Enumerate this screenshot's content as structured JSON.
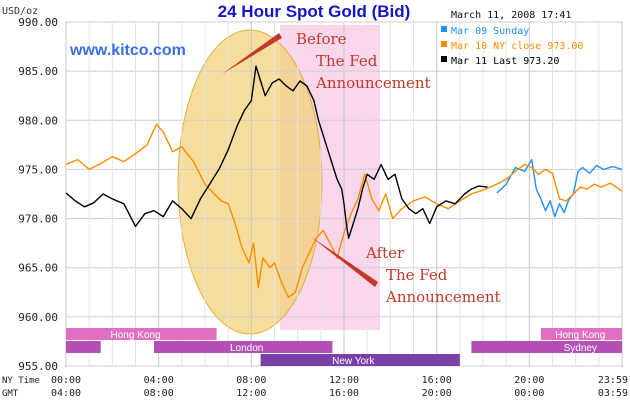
{
  "header": {
    "title": "24 Hour Spot Gold (Bid)",
    "timestamp": "March 11, 2008 17:41",
    "unit": "USD/oz",
    "website": "www.kitco.com"
  },
  "legend": [
    {
      "label": "Mar 09 Sunday",
      "color": "#1e90ff"
    },
    {
      "label": "Mar 10 NY close 973.00",
      "color": "#ff8c00"
    },
    {
      "label": "Mar 11 Last 973.20",
      "color": "#000000"
    }
  ],
  "annotations": {
    "before": [
      "Before",
      "The Fed",
      "Announcement"
    ],
    "after": [
      "After",
      "The Fed",
      "Announcement"
    ],
    "color": "#c0392b"
  },
  "axis_rows": {
    "ny_label": "NY Time",
    "gmt_label": "GMT"
  },
  "sessions": [
    {
      "name": "Hong Kong",
      "start": 0,
      "end": 6.5,
      "row": 0,
      "color": "#e06fc4",
      "label_at": 3.0
    },
    {
      "name": "Hong Kong",
      "start": 20.5,
      "end": 24,
      "row": 0,
      "color": "#e06fc4",
      "label_at": 22.2
    },
    {
      "name": "London",
      "start": 0,
      "end": 1.5,
      "row": 1,
      "color": "#b44fb4",
      "label_at": null
    },
    {
      "name": "London",
      "start": 3.8,
      "end": 11.5,
      "row": 1,
      "color": "#b44fb4",
      "label_at": 7.8
    },
    {
      "name": "Sydney",
      "start": 17.5,
      "end": 24,
      "row": 1,
      "color": "#b44fb4",
      "label_at": 22.2
    },
    {
      "name": "New York",
      "start": 8.4,
      "end": 17.0,
      "row": 2,
      "color": "#7a3fa8",
      "label_at": 12.4
    }
  ],
  "chart_data": {
    "type": "line",
    "title": "24 Hour Spot Gold (Bid)",
    "ylabel": "USD/oz",
    "xlabel": "",
    "xlim": [
      0,
      24
    ],
    "ylim": [
      955,
      990
    ],
    "grid": true,
    "legend_position": "top-right",
    "yticks": [
      "955.00",
      "960.00",
      "965.00",
      "970.00",
      "975.00",
      "980.00",
      "985.00",
      "990.00"
    ],
    "x_ticks_ny": [
      "00:00",
      "04:00",
      "08:00",
      "12:00",
      "16:00",
      "20:00",
      "23:59"
    ],
    "x_ticks_gmt": [
      "04:00",
      "08:00",
      "12:00",
      "16:00",
      "20:00",
      "00:00",
      "03:59"
    ],
    "series": [
      {
        "name": "Mar 09 Sunday",
        "color": "#1e90ff",
        "points": [
          [
            18.6,
            972.6
          ],
          [
            19.0,
            973.5
          ],
          [
            19.4,
            975.2
          ],
          [
            19.8,
            974.8
          ],
          [
            20.1,
            976.0
          ],
          [
            20.3,
            973.0
          ],
          [
            20.5,
            972.0
          ],
          [
            20.7,
            970.8
          ],
          [
            20.9,
            971.8
          ],
          [
            21.1,
            970.2
          ],
          [
            21.3,
            971.5
          ],
          [
            21.5,
            970.6
          ],
          [
            21.7,
            971.9
          ],
          [
            21.9,
            972.5
          ],
          [
            22.1,
            974.8
          ],
          [
            22.3,
            975.2
          ],
          [
            22.6,
            974.6
          ],
          [
            22.9,
            975.4
          ],
          [
            23.2,
            975.0
          ],
          [
            23.6,
            975.3
          ],
          [
            24.0,
            975.0
          ]
        ]
      },
      {
        "name": "Mar 10 NY close 973.00",
        "color": "#ff8c00",
        "points": [
          [
            0.0,
            975.5
          ],
          [
            0.5,
            976.0
          ],
          [
            1.0,
            975.0
          ],
          [
            1.5,
            975.6
          ],
          [
            2.0,
            976.3
          ],
          [
            2.5,
            975.8
          ],
          [
            3.0,
            976.6
          ],
          [
            3.5,
            977.5
          ],
          [
            3.9,
            979.6
          ],
          [
            4.2,
            978.8
          ],
          [
            4.6,
            976.8
          ],
          [
            5.0,
            977.3
          ],
          [
            5.5,
            975.8
          ],
          [
            6.0,
            973.5
          ],
          [
            6.4,
            972.5
          ],
          [
            6.7,
            971.8
          ],
          [
            7.0,
            971.5
          ],
          [
            7.3,
            969.5
          ],
          [
            7.6,
            967.0
          ],
          [
            7.9,
            965.5
          ],
          [
            8.1,
            967.5
          ],
          [
            8.3,
            963.0
          ],
          [
            8.5,
            966.0
          ],
          [
            8.8,
            965.0
          ],
          [
            9.0,
            965.5
          ],
          [
            9.3,
            963.5
          ],
          [
            9.6,
            962.0
          ],
          [
            9.9,
            962.5
          ],
          [
            10.2,
            965.0
          ],
          [
            10.5,
            966.5
          ],
          [
            10.8,
            968.0
          ],
          [
            11.1,
            968.8
          ],
          [
            11.4,
            967.5
          ],
          [
            11.7,
            966.0
          ],
          [
            12.0,
            968.5
          ],
          [
            12.3,
            970.5
          ],
          [
            12.6,
            972.0
          ],
          [
            12.9,
            974.5
          ],
          [
            13.2,
            972.0
          ],
          [
            13.5,
            970.8
          ],
          [
            13.8,
            972.5
          ],
          [
            14.1,
            970.0
          ],
          [
            14.5,
            971.0
          ],
          [
            15.0,
            971.8
          ],
          [
            15.5,
            972.2
          ],
          [
            16.0,
            971.5
          ],
          [
            16.5,
            971.0
          ],
          [
            17.0,
            971.8
          ],
          [
            17.5,
            972.5
          ],
          [
            18.0,
            972.9
          ],
          [
            18.5,
            973.4
          ],
          [
            19.0,
            974.0
          ],
          [
            19.5,
            975.0
          ],
          [
            19.8,
            975.5
          ],
          [
            20.1,
            975.2
          ],
          [
            20.4,
            974.5
          ],
          [
            20.7,
            975.0
          ],
          [
            21.0,
            974.6
          ],
          [
            21.3,
            972.0
          ],
          [
            21.6,
            971.8
          ],
          [
            21.9,
            972.5
          ],
          [
            22.2,
            973.2
          ],
          [
            22.5,
            973.0
          ],
          [
            22.8,
            973.5
          ],
          [
            23.1,
            973.2
          ],
          [
            23.5,
            973.6
          ],
          [
            24.0,
            972.8
          ]
        ]
      },
      {
        "name": "Mar 11 Last 973.20",
        "color": "#000000",
        "points": [
          [
            0.0,
            972.6
          ],
          [
            0.4,
            971.8
          ],
          [
            0.8,
            971.2
          ],
          [
            1.2,
            971.6
          ],
          [
            1.6,
            972.5
          ],
          [
            2.0,
            972.0
          ],
          [
            2.5,
            971.5
          ],
          [
            3.0,
            969.2
          ],
          [
            3.4,
            970.5
          ],
          [
            3.8,
            970.8
          ],
          [
            4.2,
            970.2
          ],
          [
            4.6,
            971.8
          ],
          [
            5.0,
            971.0
          ],
          [
            5.4,
            970.0
          ],
          [
            5.8,
            972.0
          ],
          [
            6.2,
            973.5
          ],
          [
            6.6,
            975.0
          ],
          [
            7.0,
            977.0
          ],
          [
            7.4,
            979.5
          ],
          [
            7.7,
            981.0
          ],
          [
            8.0,
            982.0
          ],
          [
            8.2,
            985.5
          ],
          [
            8.4,
            984.0
          ],
          [
            8.6,
            982.5
          ],
          [
            8.9,
            983.8
          ],
          [
            9.2,
            984.2
          ],
          [
            9.5,
            983.5
          ],
          [
            9.8,
            983.0
          ],
          [
            10.1,
            984.0
          ],
          [
            10.4,
            983.5
          ],
          [
            10.7,
            982.0
          ],
          [
            10.9,
            980.0
          ],
          [
            11.1,
            978.5
          ],
          [
            11.3,
            977.0
          ],
          [
            11.5,
            975.5
          ],
          [
            11.7,
            974.0
          ],
          [
            11.9,
            973.0
          ],
          [
            12.0,
            971.5
          ],
          [
            12.1,
            969.5
          ],
          [
            12.2,
            968.0
          ],
          [
            12.4,
            969.5
          ],
          [
            12.6,
            971.0
          ],
          [
            12.8,
            973.0
          ],
          [
            13.0,
            974.5
          ],
          [
            13.3,
            974.0
          ],
          [
            13.6,
            975.5
          ],
          [
            13.9,
            974.0
          ],
          [
            14.2,
            974.5
          ],
          [
            14.5,
            972.0
          ],
          [
            14.8,
            971.0
          ],
          [
            15.1,
            970.5
          ],
          [
            15.4,
            971.0
          ],
          [
            15.7,
            969.5
          ],
          [
            16.0,
            971.2
          ],
          [
            16.4,
            971.8
          ],
          [
            16.8,
            971.5
          ],
          [
            17.2,
            972.5
          ],
          [
            17.5,
            973.0
          ],
          [
            17.8,
            973.3
          ],
          [
            18.2,
            973.2
          ]
        ]
      }
    ]
  }
}
